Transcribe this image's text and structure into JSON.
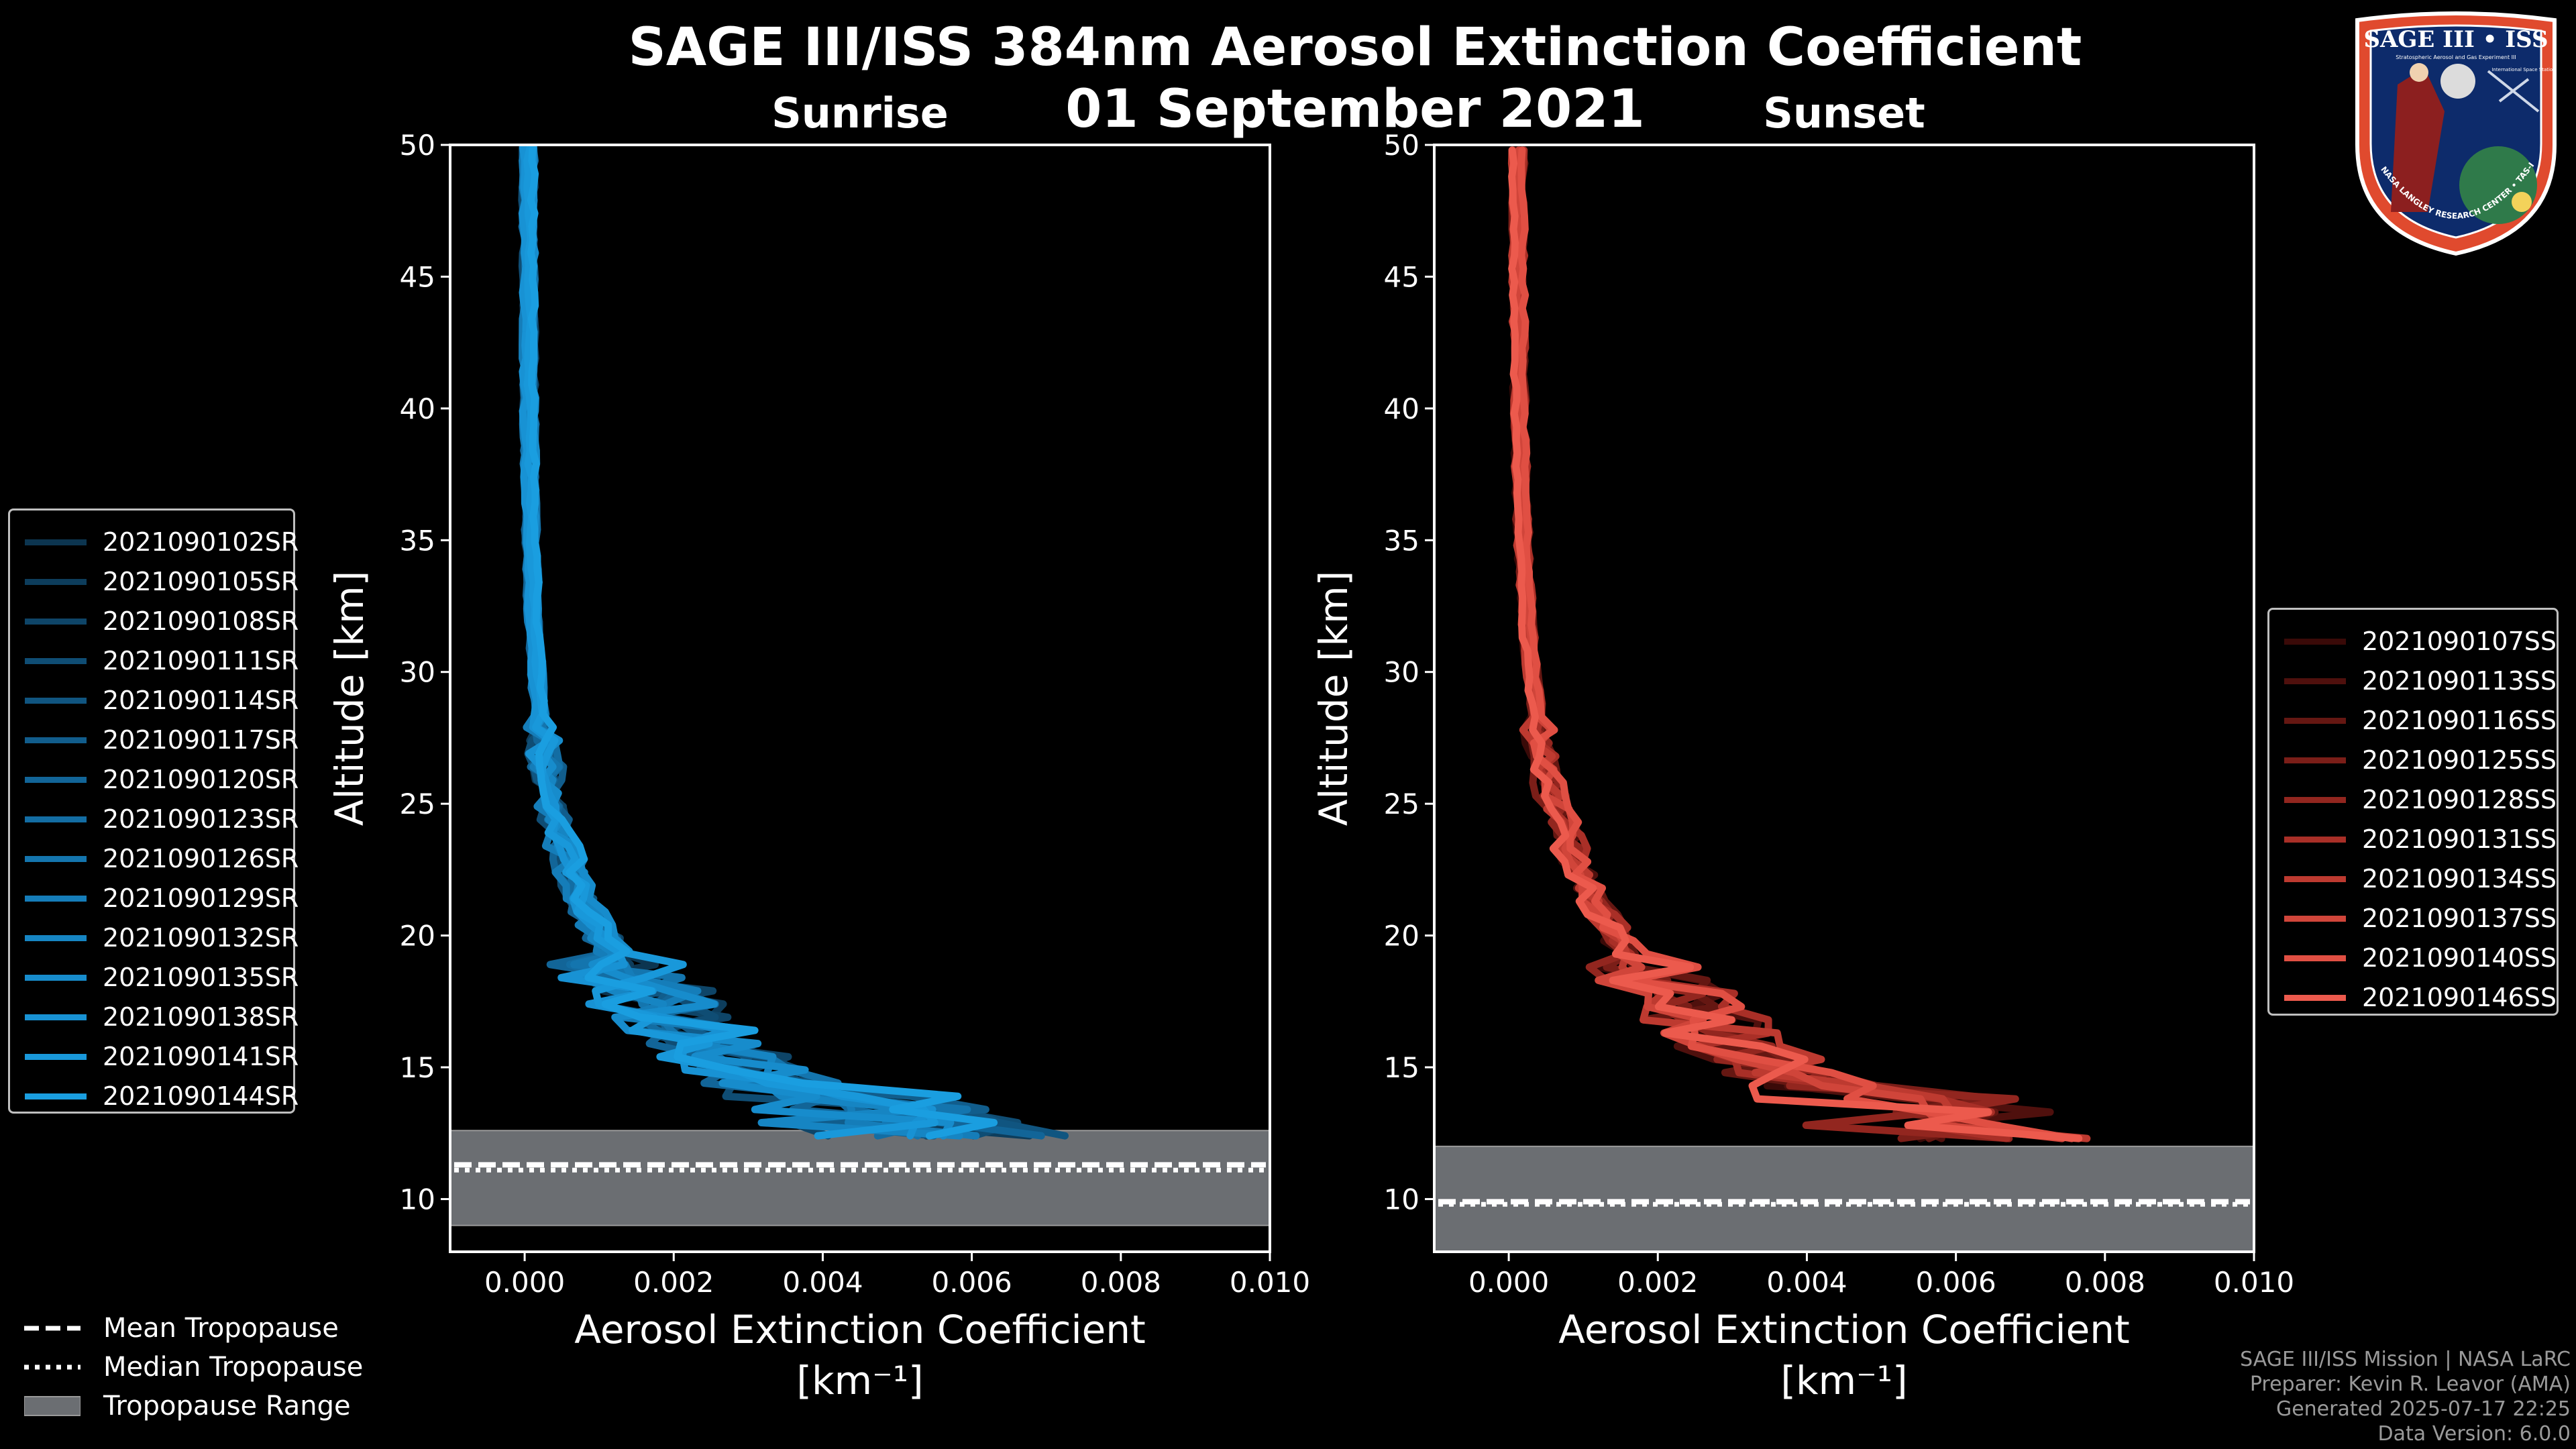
{
  "header": {
    "title": "SAGE III/ISS 384nm Aerosol Extinction Coefficient",
    "date": "01 September 2021"
  },
  "chart_data": [
    {
      "type": "line",
      "panel": "sunrise",
      "title": "Sunrise",
      "xlabel": "Aerosol Extinction Coefficient",
      "xunits": "[km⁻¹]",
      "ylabel": "Altitude [km]",
      "xlim": [
        -0.001,
        0.01
      ],
      "ylim": [
        8,
        50
      ],
      "xticks": [
        "0.000",
        "0.002",
        "0.004",
        "0.006",
        "0.008",
        "0.010"
      ],
      "xtick_values": [
        0,
        0.002,
        0.004,
        0.006,
        0.008,
        0.01
      ],
      "yticks": [
        "10",
        "15",
        "20",
        "25",
        "30",
        "35",
        "40",
        "45",
        "50"
      ],
      "ytick_values": [
        10,
        15,
        20,
        25,
        30,
        35,
        40,
        45,
        50
      ],
      "tropopause": {
        "range": [
          9.0,
          12.6
        ],
        "mean": 11.3,
        "median": 11.1
      },
      "series": [
        {
          "name": "2021090102SR",
          "color": "#0c3550"
        },
        {
          "name": "2021090105SR",
          "color": "#0d3d5c"
        },
        {
          "name": "2021090108SR",
          "color": "#0e4568"
        },
        {
          "name": "2021090111SR",
          "color": "#0f4d74"
        },
        {
          "name": "2021090114SR",
          "color": "#105580"
        },
        {
          "name": "2021090117SR",
          "color": "#115d8c"
        },
        {
          "name": "2021090120SR",
          "color": "#126598"
        },
        {
          "name": "2021090123SR",
          "color": "#136da3"
        },
        {
          "name": "2021090126SR",
          "color": "#1475ae"
        },
        {
          "name": "2021090129SR",
          "color": "#157db9"
        },
        {
          "name": "2021090132SR",
          "color": "#1685c3"
        },
        {
          "name": "2021090135SR",
          "color": "#178ccc"
        },
        {
          "name": "2021090138SR",
          "color": "#1892d4"
        },
        {
          "name": "2021090141SR",
          "color": "#1998da"
        },
        {
          "name": "2021090144SR",
          "color": "#1a9ee0"
        }
      ]
    },
    {
      "type": "line",
      "panel": "sunset",
      "title": "Sunset",
      "xlabel": "Aerosol Extinction Coefficient",
      "xunits": "[km⁻¹]",
      "ylabel": "Altitude [km]",
      "xlim": [
        -0.001,
        0.01
      ],
      "ylim": [
        8,
        50
      ],
      "xticks": [
        "0.000",
        "0.002",
        "0.004",
        "0.006",
        "0.008",
        "0.010"
      ],
      "xtick_values": [
        0,
        0.002,
        0.004,
        0.006,
        0.008,
        0.01
      ],
      "yticks": [
        "10",
        "15",
        "20",
        "25",
        "30",
        "35",
        "40",
        "45",
        "50"
      ],
      "ytick_values": [
        10,
        15,
        20,
        25,
        30,
        35,
        40,
        45,
        50
      ],
      "tropopause": {
        "range": [
          8.0,
          12.0
        ],
        "mean": 9.9,
        "median": 9.8
      },
      "series": [
        {
          "name": "2021090107SS",
          "color": "#3a0a08"
        },
        {
          "name": "2021090113SS",
          "color": "#4f100d"
        },
        {
          "name": "2021090116SS",
          "color": "#651712"
        },
        {
          "name": "2021090125SS",
          "color": "#7b1e18"
        },
        {
          "name": "2021090128SS",
          "color": "#92261f"
        },
        {
          "name": "2021090131SS",
          "color": "#a92f27"
        },
        {
          "name": "2021090134SS",
          "color": "#bd3a30"
        },
        {
          "name": "2021090137SS",
          "color": "#d0453a"
        },
        {
          "name": "2021090140SS",
          "color": "#e04f43"
        },
        {
          "name": "2021090146SS",
          "color": "#ec5a4d"
        }
      ]
    }
  ],
  "bottom_legend": [
    {
      "label": "Mean Tropopause",
      "style": "dashed"
    },
    {
      "label": "Median Tropopause",
      "style": "dotted"
    },
    {
      "label": "Tropopause Range",
      "style": "patch"
    }
  ],
  "credits": {
    "line1": "SAGE III/ISS Mission | NASA LaRC",
    "line2": "Preparer: Kevin R. Leavor (AMA)",
    "line3": "Generated 2025-07-17 22:25",
    "line4": "Data Version: 6.0.0"
  },
  "badge": {
    "title": "SAGE III • ISS",
    "subtitle": "Stratospheric Aerosol and Gas Experiment III",
    "side": "International Space Station",
    "ring": "BALL • NASA LANGLEY RESEARCH CENTER • TAS-I • ESA"
  },
  "colors": {
    "tropo_fill": "#6b6e72",
    "axes": "#ffffff",
    "legend_edge": "#bfbfbf"
  }
}
